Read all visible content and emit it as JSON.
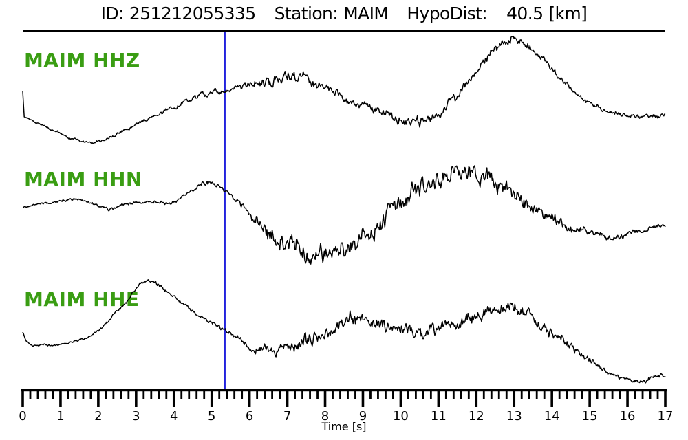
{
  "header": {
    "id_label": "ID:",
    "id_value": "251212055335",
    "station_label": "Station:",
    "station_value": "MAIM",
    "hypodist_label": "HypoDist:",
    "hypodist_value": "40.5",
    "hypodist_unit": "[km]"
  },
  "colors": {
    "background": "#ffffff",
    "trace_black": "#000000",
    "label_green": "#3a9d13",
    "pick_blue": "#2222dd",
    "axis_black": "#000000"
  },
  "chart_data": {
    "type": "line",
    "title": "ID: 251212055335  Station: MAIM  HypoDist: 40.5 [km]",
    "xlabel": "Time [s]",
    "x_range": [
      0,
      17
    ],
    "x_major_tick_step_s": 1,
    "x_minor_tick_step_s": 0.2,
    "x_tick_labels": [
      "0",
      "1",
      "2",
      "3",
      "4",
      "5",
      "6",
      "7",
      "8",
      "9",
      "10",
      "11",
      "12",
      "13",
      "14",
      "15",
      "16",
      "17"
    ],
    "grid": false,
    "legend": "none",
    "pick_line_time_s": 5.35,
    "y_units": "screen px (amplitude unlabeled in source image)",
    "traces": [
      {
        "label": "MAIM HHZ",
        "station": "MAIM",
        "channel": "HHZ",
        "midline": [
          [
            0,
            133
          ],
          [
            0.04,
            170
          ],
          [
            0.3,
            177
          ],
          [
            0.7,
            186
          ],
          [
            1.0,
            193
          ],
          [
            1.3,
            201
          ],
          [
            1.6,
            206
          ],
          [
            1.9,
            206
          ],
          [
            2.2,
            201
          ],
          [
            2.5,
            194
          ],
          [
            2.8,
            188
          ],
          [
            3.1,
            179
          ],
          [
            3.4,
            170
          ],
          [
            3.7,
            163
          ],
          [
            4.0,
            155
          ],
          [
            4.3,
            148
          ],
          [
            4.6,
            141
          ],
          [
            4.9,
            135
          ],
          [
            5.2,
            130
          ],
          [
            5.5,
            127
          ],
          [
            5.8,
            125
          ],
          [
            6.1,
            122
          ],
          [
            6.4,
            119
          ],
          [
            6.7,
            115
          ],
          [
            7.0,
            112
          ],
          [
            7.3,
            113
          ],
          [
            7.6,
            117
          ],
          [
            7.9,
            123
          ],
          [
            8.2,
            131
          ],
          [
            8.5,
            140
          ],
          [
            8.8,
            148
          ],
          [
            9.1,
            154
          ],
          [
            9.4,
            160
          ],
          [
            9.7,
            167
          ],
          [
            10.0,
            173
          ],
          [
            10.3,
            178
          ],
          [
            10.6,
            177
          ],
          [
            10.9,
            169
          ],
          [
            11.2,
            156
          ],
          [
            11.5,
            141
          ],
          [
            11.8,
            122
          ],
          [
            12.1,
            99
          ],
          [
            12.4,
            78
          ],
          [
            12.7,
            61
          ],
          [
            13.0,
            56
          ],
          [
            13.3,
            65
          ],
          [
            13.6,
            79
          ],
          [
            13.9,
            97
          ],
          [
            14.2,
            114
          ],
          [
            14.5,
            129
          ],
          [
            14.8,
            142
          ],
          [
            15.1,
            153
          ],
          [
            15.4,
            161
          ],
          [
            15.7,
            166
          ],
          [
            16.0,
            170
          ],
          [
            16.3,
            172
          ],
          [
            16.6,
            171
          ],
          [
            16.9,
            167
          ],
          [
            17,
            164
          ]
        ],
        "noise_amp": [
          [
            0,
            1
          ],
          [
            1,
            2
          ],
          [
            2,
            2.5
          ],
          [
            3,
            3
          ],
          [
            4,
            4
          ],
          [
            5,
            5
          ],
          [
            6,
            7
          ],
          [
            6.5,
            9
          ],
          [
            7,
            10
          ],
          [
            7.5,
            9
          ],
          [
            8,
            8
          ],
          [
            9,
            7
          ],
          [
            9.5,
            8
          ],
          [
            10,
            10
          ],
          [
            10.5,
            11
          ],
          [
            11,
            9
          ],
          [
            12,
            8
          ],
          [
            13,
            8
          ],
          [
            13.5,
            7
          ],
          [
            14,
            6
          ],
          [
            14.5,
            5
          ],
          [
            15,
            4.5
          ],
          [
            16,
            4
          ],
          [
            17,
            4
          ]
        ]
      },
      {
        "label": "MAIM HHN",
        "station": "MAIM",
        "channel": "HHN",
        "midline": [
          [
            0,
            303
          ],
          [
            0.3,
            299
          ],
          [
            0.6,
            296
          ],
          [
            0.9,
            293
          ],
          [
            1.2,
            291
          ],
          [
            1.5,
            289
          ],
          [
            1.8,
            295
          ],
          [
            2.1,
            302
          ],
          [
            2.3,
            305
          ],
          [
            2.6,
            298
          ],
          [
            2.9,
            296
          ],
          [
            3.2,
            294
          ],
          [
            3.5,
            295
          ],
          [
            3.8,
            296
          ],
          [
            4.1,
            291
          ],
          [
            4.4,
            278
          ],
          [
            4.7,
            270
          ],
          [
            5.0,
            268
          ],
          [
            5.2,
            271
          ],
          [
            5.4,
            280
          ],
          [
            5.6,
            290
          ],
          [
            5.8,
            300
          ],
          [
            6.0,
            310
          ],
          [
            6.2,
            320
          ],
          [
            6.5,
            335
          ],
          [
            6.8,
            347
          ],
          [
            7.1,
            357
          ],
          [
            7.4,
            365
          ],
          [
            7.7,
            370
          ],
          [
            8.0,
            373
          ],
          [
            8.3,
            372
          ],
          [
            8.6,
            366
          ],
          [
            8.9,
            352
          ],
          [
            9.2,
            338
          ],
          [
            9.5,
            322
          ],
          [
            9.8,
            305
          ],
          [
            10.1,
            291
          ],
          [
            10.4,
            278
          ],
          [
            10.7,
            268
          ],
          [
            11.0,
            261
          ],
          [
            11.3,
            256
          ],
          [
            11.6,
            254
          ],
          [
            11.9,
            255
          ],
          [
            12.2,
            259
          ],
          [
            12.5,
            266
          ],
          [
            12.8,
            276
          ],
          [
            13.1,
            287
          ],
          [
            13.4,
            298
          ],
          [
            13.7,
            310
          ],
          [
            14.0,
            319
          ],
          [
            14.3,
            327
          ],
          [
            14.6,
            333
          ],
          [
            14.9,
            339
          ],
          [
            15.2,
            344
          ],
          [
            15.5,
            347
          ],
          [
            15.8,
            345
          ],
          [
            16.1,
            340
          ],
          [
            16.4,
            334
          ],
          [
            16.7,
            330
          ],
          [
            17,
            329
          ]
        ],
        "noise_amp": [
          [
            0,
            1.5
          ],
          [
            1,
            2
          ],
          [
            2,
            2.5
          ],
          [
            3,
            2.5
          ],
          [
            4,
            3.5
          ],
          [
            5,
            4
          ],
          [
            5.8,
            5
          ],
          [
            6.2,
            12
          ],
          [
            6.6,
            18
          ],
          [
            7,
            20
          ],
          [
            7.5,
            19
          ],
          [
            8,
            18
          ],
          [
            9,
            17
          ],
          [
            10,
            16
          ],
          [
            11,
            16
          ],
          [
            11.5,
            17
          ],
          [
            12,
            16
          ],
          [
            12.5,
            15
          ],
          [
            13,
            14
          ],
          [
            13.5,
            12
          ],
          [
            14,
            10
          ],
          [
            14.5,
            8
          ],
          [
            15,
            6
          ],
          [
            15.5,
            5
          ],
          [
            16,
            5
          ],
          [
            16.5,
            4
          ],
          [
            17,
            4
          ]
        ]
      },
      {
        "label": "MAIM HHE",
        "station": "MAIM",
        "channel": "HHE",
        "midline": [
          [
            0,
            483
          ],
          [
            0.1,
            497
          ],
          [
            0.25,
            503
          ],
          [
            0.5,
            501
          ],
          [
            0.8,
            503
          ],
          [
            1.1,
            500
          ],
          [
            1.4,
            497
          ],
          [
            1.7,
            491
          ],
          [
            2.0,
            479
          ],
          [
            2.3,
            465
          ],
          [
            2.6,
            448
          ],
          [
            2.9,
            428
          ],
          [
            3.1,
            414
          ],
          [
            3.3,
            409
          ],
          [
            3.5,
            412
          ],
          [
            3.7,
            419
          ],
          [
            4.0,
            431
          ],
          [
            4.3,
            444
          ],
          [
            4.6,
            457
          ],
          [
            4.9,
            467
          ],
          [
            5.2,
            476
          ],
          [
            5.4,
            482
          ],
          [
            5.7,
            492
          ],
          [
            6.0,
            503
          ],
          [
            6.2,
            509
          ],
          [
            6.5,
            512
          ],
          [
            6.8,
            509
          ],
          [
            7.1,
            504
          ],
          [
            7.4,
            498
          ],
          [
            7.7,
            492
          ],
          [
            8.0,
            482
          ],
          [
            8.3,
            472
          ],
          [
            8.6,
            465
          ],
          [
            8.9,
            462
          ],
          [
            9.2,
            464
          ],
          [
            9.5,
            468
          ],
          [
            9.8,
            473
          ],
          [
            10.1,
            477
          ],
          [
            10.4,
            481
          ],
          [
            10.7,
            482
          ],
          [
            11.0,
            479
          ],
          [
            11.3,
            472
          ],
          [
            11.6,
            465
          ],
          [
            11.9,
            459
          ],
          [
            12.2,
            453
          ],
          [
            12.5,
            449
          ],
          [
            12.8,
            447
          ],
          [
            13.1,
            451
          ],
          [
            13.4,
            459
          ],
          [
            13.7,
            470
          ],
          [
            14.0,
            484
          ],
          [
            14.3,
            497
          ],
          [
            14.6,
            509
          ],
          [
            14.9,
            521
          ],
          [
            15.2,
            532
          ],
          [
            15.5,
            543
          ],
          [
            15.8,
            550
          ],
          [
            16.1,
            553
          ],
          [
            16.4,
            553
          ],
          [
            16.7,
            549
          ],
          [
            17,
            545
          ]
        ],
        "noise_amp": [
          [
            0,
            1.5
          ],
          [
            1,
            2
          ],
          [
            2,
            2.5
          ],
          [
            3,
            3
          ],
          [
            4,
            3
          ],
          [
            5,
            3.5
          ],
          [
            5.7,
            5
          ],
          [
            6.1,
            8
          ],
          [
            6.5,
            10
          ],
          [
            7,
            11
          ],
          [
            7.5,
            12
          ],
          [
            8,
            12
          ],
          [
            8.5,
            13
          ],
          [
            9,
            12
          ],
          [
            10,
            12
          ],
          [
            11,
            12
          ],
          [
            11.5,
            13
          ],
          [
            12,
            13
          ],
          [
            13,
            12
          ],
          [
            13.5,
            11
          ],
          [
            14,
            9
          ],
          [
            14.5,
            8
          ],
          [
            15,
            6
          ],
          [
            15.5,
            4
          ],
          [
            16,
            3.5
          ],
          [
            16.5,
            4
          ],
          [
            17,
            4
          ]
        ]
      }
    ]
  }
}
